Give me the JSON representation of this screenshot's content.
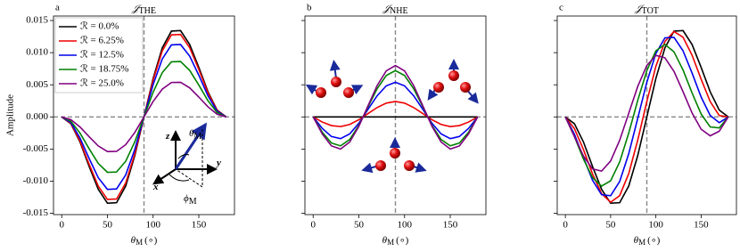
{
  "chart_data": [
    {
      "type": "line",
      "label": "a",
      "title": "𝒥",
      "title_sub": "THE",
      "xlabel": "θ",
      "xlabel_sub": "M",
      "xlabel_unit": "(∘)",
      "ylabel": "Amplitude",
      "x": [
        0,
        10,
        20,
        30,
        40,
        50,
        60,
        70,
        80,
        90,
        100,
        110,
        120,
        130,
        140,
        150,
        160,
        170,
        180
      ],
      "xlim": [
        -9,
        189
      ],
      "xticks": [
        0,
        50,
        100,
        150
      ],
      "ylim": [
        -0.0152,
        0.0157
      ],
      "yticks": [
        {
          "value": -0.015,
          "label": "-0.015"
        },
        {
          "value": -0.01,
          "label": "-0.010"
        },
        {
          "value": -0.005,
          "label": "-0.005"
        },
        {
          "value": 0,
          "label": "0.000"
        },
        0.005,
        {
          "value": 0.01,
          "label": "0.010"
        },
        0.015
      ],
      "reference_lines": {
        "x": 90,
        "y": 0
      },
      "legend": "upper left",
      "annotations": [
        {
          "text": "z"
        },
        {
          "text": "y"
        },
        {
          "text": "x"
        },
        {
          "text": "θ",
          "sub": "M"
        },
        {
          "text": "ϕ",
          "sub": "M"
        }
      ],
      "series": [
        {
          "name": "ℛ = 0.0%",
          "color": "#000000",
          "values": [
            0,
            -0.00106,
            -0.00391,
            -0.00771,
            -0.01126,
            -0.01343,
            -0.01335,
            -0.01075,
            -0.00599,
            0,
            0.00599,
            0.01075,
            0.01335,
            0.01343,
            0.01126,
            0.00771,
            0.00391,
            0.00106,
            0
          ]
        },
        {
          "name": "ℛ = 6.25%",
          "color": "#ee0000",
          "values": [
            0,
            -0.00101,
            -0.00374,
            -0.00737,
            -0.01077,
            -0.01284,
            -0.01277,
            -0.01028,
            -0.00573,
            0,
            0.00573,
            0.01028,
            0.01277,
            0.01284,
            0.01077,
            0.00737,
            0.00374,
            0.00101,
            0
          ]
        },
        {
          "name": "ℛ = 12.5%",
          "color": "#0000ee",
          "values": [
            0,
            -0.00089,
            -0.00328,
            -0.00647,
            -0.00946,
            -0.01127,
            -0.01121,
            -0.00902,
            -0.00503,
            0,
            0.00503,
            0.00902,
            0.01121,
            0.01127,
            0.00946,
            0.00647,
            0.00328,
            0.00089,
            0
          ]
        },
        {
          "name": "ℛ = 18.75%",
          "color": "#008000",
          "values": [
            0,
            -0.00068,
            -0.00251,
            -0.00495,
            -0.00724,
            -0.00862,
            -0.00857,
            -0.0069,
            -0.00385,
            0,
            0.00385,
            0.0069,
            0.00857,
            0.00862,
            0.00724,
            0.00495,
            0.00251,
            0.00068,
            0
          ]
        },
        {
          "name": "ℛ = 25.0%",
          "color": "#800080",
          "values": [
            0,
            -0.00042,
            -0.00157,
            -0.00309,
            -0.00452,
            -0.00539,
            -0.00536,
            -0.00432,
            -0.00241,
            0,
            0.00241,
            0.00432,
            0.00536,
            0.00539,
            0.00452,
            0.00309,
            0.00157,
            0.00042,
            0
          ]
        }
      ]
    },
    {
      "type": "line",
      "label": "b",
      "title": "𝒥",
      "title_sub": "NHE",
      "xlabel": "θ",
      "xlabel_sub": "M",
      "xlabel_unit": "(∘)",
      "x": [
        0,
        10,
        20,
        30,
        40,
        50,
        60,
        70,
        80,
        90,
        100,
        110,
        120,
        130,
        140,
        150,
        160,
        170,
        180
      ],
      "xlim": [
        -9,
        189
      ],
      "xticks": [
        0,
        50,
        100,
        150
      ],
      "ylim": [
        -0.0152,
        0.0157
      ],
      "reference_lines": {
        "x": 90,
        "y": 0
      },
      "series": [
        {
          "color": "#000000",
          "values": [
            0,
            0,
            0,
            0,
            0,
            0,
            0,
            0,
            0,
            0,
            0,
            0,
            0,
            0,
            0,
            0,
            0,
            0,
            0
          ]
        },
        {
          "color": "#ee0000",
          "values": [
            0,
            -0.0008,
            -0.00135,
            -0.0015,
            -0.00117,
            -0.00044,
            0.00052,
            0.00146,
            0.00215,
            0.0024,
            0.00215,
            0.00146,
            0.00052,
            -0.00044,
            -0.00117,
            -0.0015,
            -0.00135,
            -0.0008,
            0
          ]
        },
        {
          "color": "#0000ee",
          "values": [
            0,
            -0.00179,
            -0.00305,
            -0.00338,
            -0.00264,
            -0.00099,
            0.00117,
            0.00329,
            0.00484,
            0.0054,
            0.00484,
            0.00329,
            0.00117,
            -0.00099,
            -0.00264,
            -0.00338,
            -0.00305,
            -0.00179,
            0
          ]
        },
        {
          "color": "#008000",
          "values": [
            0,
            -0.00239,
            -0.00406,
            -0.0045,
            -0.00352,
            -0.00132,
            0.00156,
            0.00439,
            0.00645,
            0.0072,
            0.00645,
            0.00439,
            0.00156,
            -0.00132,
            -0.00352,
            -0.0045,
            -0.00406,
            -0.00239,
            0
          ]
        },
        {
          "color": "#800080",
          "values": [
            0,
            -0.00265,
            -0.00451,
            -0.005,
            -0.00391,
            -0.00147,
            0.00173,
            0.00488,
            0.00717,
            0.008,
            0.00717,
            0.00488,
            0.00173,
            -0.00147,
            -0.00391,
            -0.005,
            -0.00451,
            -0.00265,
            0
          ]
        }
      ]
    },
    {
      "type": "line",
      "label": "c",
      "title": "𝒥",
      "title_sub": "TOT",
      "xlabel": "θ",
      "xlabel_sub": "M",
      "xlabel_unit": "(∘)",
      "x": [
        0,
        10,
        20,
        30,
        40,
        50,
        60,
        70,
        80,
        90,
        100,
        110,
        120,
        130,
        140,
        150,
        160,
        170,
        180
      ],
      "xlim": [
        -9,
        189
      ],
      "xticks": [
        0,
        50,
        100,
        150
      ],
      "ylim": [
        -0.0152,
        0.0157
      ],
      "reference_lines": {
        "x": 90,
        "y": 0
      },
      "series": [
        {
          "color": "#000000",
          "values": [
            0,
            -0.00106,
            -0.00391,
            -0.00771,
            -0.01126,
            -0.01343,
            -0.01335,
            -0.01075,
            -0.00599,
            0,
            0.00599,
            0.01075,
            0.01335,
            0.01343,
            0.01126,
            0.00771,
            0.00391,
            0.00106,
            0
          ]
        },
        {
          "color": "#ee0000",
          "values": [
            0,
            -0.00181,
            -0.00509,
            -0.00887,
            -0.01194,
            -0.01328,
            -0.01225,
            -0.00882,
            -0.00358,
            0.0024,
            0.00788,
            0.01174,
            0.01329,
            0.0124,
            0.0096,
            0.00587,
            0.00239,
            0.00021,
            0
          ]
        },
        {
          "color": "#0000ee",
          "values": [
            0,
            -0.00268,
            -0.00633,
            -0.00985,
            -0.0121,
            -0.01226,
            -0.01004,
            -0.00573,
            -0.00019,
            0.0054,
            0.00987,
            0.01231,
            0.01238,
            0.01028,
            0.00682,
            0.00309,
            0.00023,
            -0.0009,
            0
          ]
        },
        {
          "color": "#008000",
          "values": [
            0,
            -0.00307,
            -0.00657,
            -0.00945,
            -0.01076,
            -0.00994,
            -0.00701,
            -0.00251,
            0.0026,
            0.0072,
            0.0103,
            0.01129,
            0.01013,
            0.0073,
            0.00372,
            0.00045,
            -0.00155,
            -0.00171,
            0
          ]
        },
        {
          "color": "#800080",
          "values": [
            0,
            -0.00307,
            -0.00608,
            -0.00809,
            -0.00843,
            -0.00686,
            -0.00363,
            0.00056,
            0.00476,
            0.008,
            0.00958,
            0.0092,
            0.00709,
            0.00392,
            0.00061,
            -0.00191,
            -0.00294,
            -0.00223,
            0
          ]
        }
      ]
    }
  ]
}
